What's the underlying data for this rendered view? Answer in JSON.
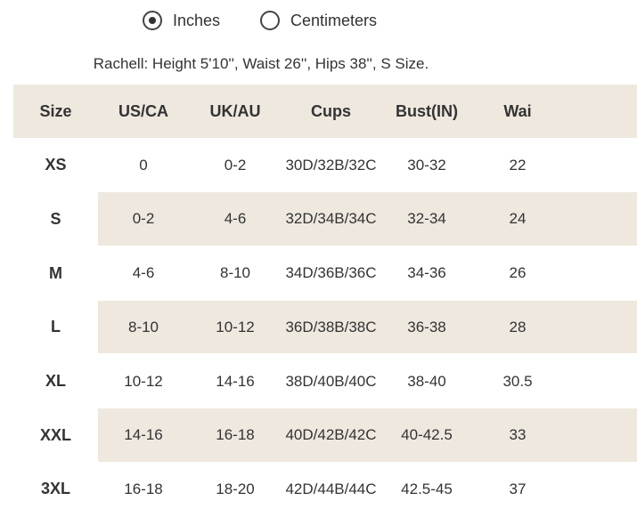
{
  "radio": {
    "options": [
      {
        "label": "Inches",
        "selected": true
      },
      {
        "label": "Centimeters",
        "selected": false
      }
    ]
  },
  "note": "Rachell: Height 5'10'', Waist 26'', Hips 38'', S Size.",
  "table": {
    "header": [
      "Size",
      "US/CA",
      "UK/AU",
      "Cups",
      "Bust(IN)",
      "Wai"
    ],
    "rows": [
      [
        "XS",
        "0",
        "0-2",
        "30D/32B/32C",
        "30-32",
        "22"
      ],
      [
        "S",
        "0-2",
        "4-6",
        "32D/34B/34C",
        "32-34",
        "24"
      ],
      [
        "M",
        "4-6",
        "8-10",
        "34D/36B/36C",
        "34-36",
        "26"
      ],
      [
        "L",
        "8-10",
        "10-12",
        "36D/38B/38C",
        "36-38",
        "28"
      ],
      [
        "XL",
        "10-12",
        "14-16",
        "38D/40B/40C",
        "38-40",
        "30.5"
      ],
      [
        "XXL",
        "14-16",
        "16-18",
        "40D/42B/42C",
        "40-42.5",
        "33"
      ],
      [
        "3XL",
        "16-18",
        "18-20",
        "42D/44B/44C",
        "42.5-45",
        "37"
      ]
    ]
  }
}
